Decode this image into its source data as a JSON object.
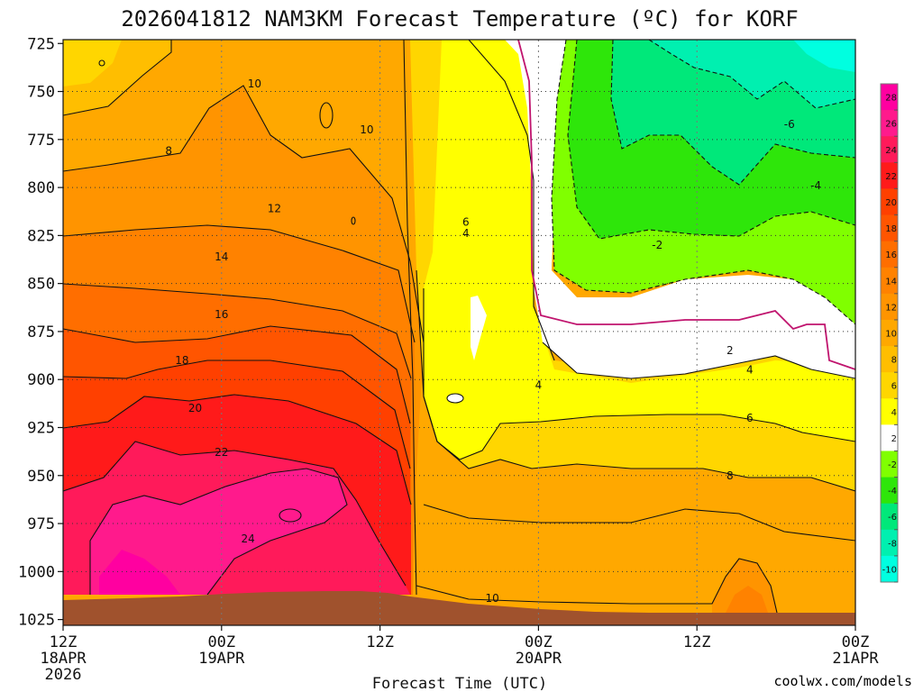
{
  "chart_data": {
    "type": "heatmap",
    "title": "2026041812 NAM3KM Forecast Temperature (ºC) for KORF",
    "xlabel": "Forecast Time (UTC)",
    "ylabel": "",
    "x_ticks": [
      {
        "hour": 0,
        "lines": [
          "12Z",
          "18APR",
          "2026"
        ]
      },
      {
        "hour": 12,
        "lines": [
          "00Z",
          "19APR"
        ]
      },
      {
        "hour": 24,
        "lines": [
          "12Z"
        ]
      },
      {
        "hour": 36,
        "lines": [
          "00Z",
          "20APR"
        ]
      },
      {
        "hour": 48,
        "lines": [
          "12Z"
        ]
      },
      {
        "hour": 60,
        "lines": [
          "00Z",
          "21APR"
        ]
      }
    ],
    "y_ticks": [
      725,
      750,
      775,
      800,
      825,
      850,
      875,
      900,
      925,
      950,
      975,
      1000,
      1025
    ],
    "xlim": [
      0,
      60
    ],
    "ylim": [
      1028,
      723
    ],
    "grid": true,
    "colorbar": {
      "ticks": [
        28,
        26,
        24,
        22,
        20,
        18,
        16,
        14,
        12,
        10,
        8,
        6,
        4,
        2,
        -2,
        -4,
        -6,
        -8,
        -10
      ],
      "colors": [
        "#ff00a0",
        "#ff1a8c",
        "#ff1a5a",
        "#ff1a1a",
        "#ff4000",
        "#ff5500",
        "#ff6e00",
        "#ff8200",
        "#ff9400",
        "#ffa800",
        "#ffbe00",
        "#ffd600",
        "#ffff00",
        "#ffffff",
        "#80ff00",
        "#2ee60a",
        "#00e87a",
        "#00f0b0",
        "#00ffe0"
      ]
    },
    "labeled_contours": [
      {
        "value": 10,
        "hour": 14.5,
        "pressure": 746
      },
      {
        "value": 10,
        "hour": 23,
        "pressure": 770
      },
      {
        "value": 8,
        "hour": 8,
        "pressure": 781
      },
      {
        "value": 12,
        "hour": 16,
        "pressure": 811
      },
      {
        "value": 14,
        "hour": 12,
        "pressure": 836
      },
      {
        "value": 16,
        "hour": 12,
        "pressure": 866
      },
      {
        "value": 18,
        "hour": 9,
        "pressure": 890
      },
      {
        "value": 20,
        "hour": 10,
        "pressure": 915
      },
      {
        "value": 22,
        "hour": 12,
        "pressure": 938
      },
      {
        "value": 24,
        "hour": 14,
        "pressure": 983
      },
      {
        "value": 6,
        "hour": 30.5,
        "pressure": 818
      },
      {
        "value": 4,
        "hour": 30.5,
        "pressure": 824
      },
      {
        "value": 4,
        "hour": 36,
        "pressure": 903
      },
      {
        "value": 2,
        "hour": 50.5,
        "pressure": 885
      },
      {
        "value": 4,
        "hour": 52,
        "pressure": 895
      },
      {
        "value": 6,
        "hour": 52,
        "pressure": 920
      },
      {
        "value": 8,
        "hour": 50.5,
        "pressure": 950
      },
      {
        "value": 10,
        "hour": 32.5,
        "pressure": 1014
      },
      {
        "value": -2,
        "hour": 45,
        "pressure": 830
      },
      {
        "value": -4,
        "hour": 57,
        "pressure": 799
      },
      {
        "value": -6,
        "hour": 55,
        "pressure": 767
      }
    ]
  },
  "watermark": "coolwx.com/models"
}
